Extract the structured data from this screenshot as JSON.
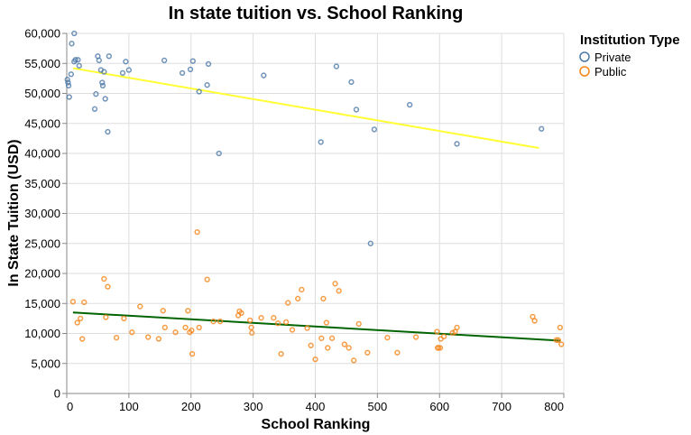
{
  "chart_data": {
    "type": "scatter",
    "title": "In state tuition vs. School Ranking",
    "xlabel": "School Ranking",
    "ylabel": "In State Tuition (USD)",
    "xlim": [
      0,
      800
    ],
    "ylim": [
      0,
      60000
    ],
    "x_ticks": [
      0,
      100,
      200,
      300,
      400,
      500,
      600,
      700,
      800
    ],
    "y_ticks": [
      0,
      5000,
      10000,
      15000,
      20000,
      25000,
      30000,
      35000,
      40000,
      45000,
      50000,
      55000,
      60000
    ],
    "grid": true,
    "legend": {
      "title": "Institution Type",
      "placement": "right"
    },
    "series": [
      {
        "name": "Private",
        "color": "#4c78a8",
        "points": [
          [
            1,
            52300
          ],
          [
            2,
            51800
          ],
          [
            3,
            51300
          ],
          [
            4,
            49400
          ],
          [
            7,
            53200
          ],
          [
            8,
            58300
          ],
          [
            12,
            60000
          ],
          [
            12,
            55300
          ],
          [
            14,
            55600
          ],
          [
            18,
            55600
          ],
          [
            20,
            54600
          ],
          [
            45,
            47400
          ],
          [
            47,
            49900
          ],
          [
            50,
            56200
          ],
          [
            52,
            55500
          ],
          [
            55,
            53900
          ],
          [
            57,
            51800
          ],
          [
            58,
            51300
          ],
          [
            60,
            53600
          ],
          [
            62,
            49100
          ],
          [
            66,
            43600
          ],
          [
            68,
            56200
          ],
          [
            90,
            53400
          ],
          [
            95,
            55300
          ],
          [
            100,
            53900
          ],
          [
            157,
            55500
          ],
          [
            186,
            53400
          ],
          [
            199,
            54000
          ],
          [
            203,
            55400
          ],
          [
            213,
            50300
          ],
          [
            226,
            51400
          ],
          [
            228,
            54900
          ],
          [
            245,
            40000
          ],
          [
            317,
            53000
          ],
          [
            409,
            41900
          ],
          [
            434,
            54500
          ],
          [
            458,
            51900
          ],
          [
            466,
            47300
          ],
          [
            489,
            25000
          ],
          [
            495,
            44000
          ],
          [
            552,
            48100
          ],
          [
            628,
            41600
          ],
          [
            764,
            44100
          ]
        ],
        "trend": [
          [
            10,
            54200
          ],
          [
            760,
            40900
          ]
        ],
        "trend_color": "#ffff33"
      },
      {
        "name": "Public",
        "color": "#f58518",
        "points": [
          [
            10,
            15300
          ],
          [
            17,
            11800
          ],
          [
            22,
            12500
          ],
          [
            25,
            9100
          ],
          [
            28,
            15200
          ],
          [
            60,
            19100
          ],
          [
            63,
            12700
          ],
          [
            66,
            17800
          ],
          [
            80,
            9300
          ],
          [
            92,
            12500
          ],
          [
            105,
            10200
          ],
          [
            118,
            14500
          ],
          [
            131,
            9400
          ],
          [
            148,
            9100
          ],
          [
            155,
            13800
          ],
          [
            158,
            11000
          ],
          [
            175,
            10200
          ],
          [
            191,
            11000
          ],
          [
            195,
            13800
          ],
          [
            198,
            10200
          ],
          [
            201,
            10500
          ],
          [
            202,
            6600
          ],
          [
            210,
            26900
          ],
          [
            213,
            11000
          ],
          [
            226,
            19000
          ],
          [
            236,
            12000
          ],
          [
            247,
            12000
          ],
          [
            276,
            13000
          ],
          [
            278,
            13700
          ],
          [
            281,
            13400
          ],
          [
            295,
            12200
          ],
          [
            297,
            11000
          ],
          [
            298,
            10100
          ],
          [
            313,
            12600
          ],
          [
            333,
            12600
          ],
          [
            340,
            11700
          ],
          [
            345,
            6600
          ],
          [
            353,
            11900
          ],
          [
            356,
            15100
          ],
          [
            363,
            10600
          ],
          [
            372,
            15800
          ],
          [
            378,
            17300
          ],
          [
            387,
            10900
          ],
          [
            393,
            8000
          ],
          [
            400,
            5700
          ],
          [
            410,
            9200
          ],
          [
            413,
            15800
          ],
          [
            418,
            11800
          ],
          [
            420,
            7600
          ],
          [
            427,
            9200
          ],
          [
            432,
            18300
          ],
          [
            438,
            17100
          ],
          [
            447,
            8200
          ],
          [
            454,
            7600
          ],
          [
            462,
            5500
          ],
          [
            470,
            11600
          ],
          [
            484,
            6800
          ],
          [
            516,
            9300
          ],
          [
            532,
            6800
          ],
          [
            562,
            9400
          ],
          [
            596,
            10300
          ],
          [
            597,
            7600
          ],
          [
            598,
            7600
          ],
          [
            601,
            7600
          ],
          [
            602,
            9100
          ],
          [
            607,
            9500
          ],
          [
            621,
            10100
          ],
          [
            625,
            10300
          ],
          [
            628,
            11000
          ],
          [
            750,
            12800
          ],
          [
            753,
            12100
          ],
          [
            788,
            8900
          ],
          [
            791,
            8900
          ],
          [
            794,
            11000
          ],
          [
            796,
            8200
          ]
        ],
        "trend": [
          [
            10,
            13500
          ],
          [
            795,
            8800
          ]
        ],
        "trend_color": "#006400"
      }
    ]
  }
}
